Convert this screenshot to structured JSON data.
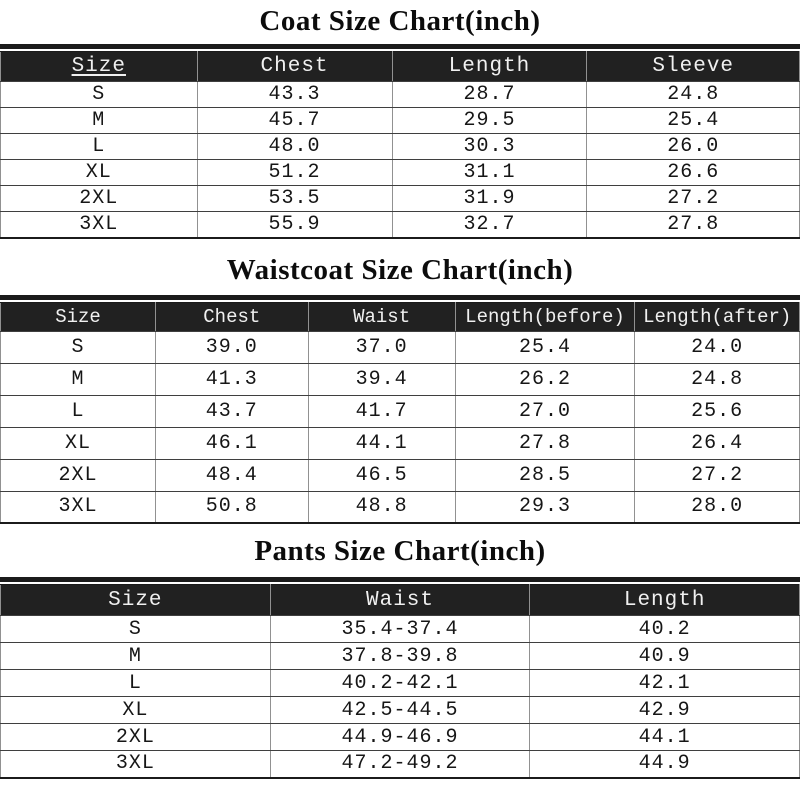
{
  "colors": {
    "header_bg": "#212121",
    "header_text": "#f0f0f0",
    "body_text": "#161616",
    "page_bg": "#ffffff"
  },
  "chart_data": [
    {
      "type": "table",
      "id": "coat",
      "title": "Coat Size Chart(inch)",
      "unit": "inch",
      "columns": [
        "Size",
        "Chest",
        "Length",
        "Sleeve"
      ],
      "col_widths": [
        "24.6%",
        "24.4%",
        "24.4%",
        "26.6%"
      ],
      "rows": [
        [
          "S",
          "43.3",
          "28.7",
          "24.8"
        ],
        [
          "M",
          "45.7",
          "29.5",
          "25.4"
        ],
        [
          "L",
          "48.0",
          "30.3",
          "26.0"
        ],
        [
          "XL",
          "51.2",
          "31.1",
          "26.6"
        ],
        [
          "2XL",
          "53.5",
          "31.9",
          "27.2"
        ],
        [
          "3XL",
          "55.9",
          "32.7",
          "27.8"
        ]
      ]
    },
    {
      "type": "table",
      "id": "waistcoat",
      "title": "Waistcoat Size Chart(inch)",
      "unit": "inch",
      "columns": [
        "Size",
        "Chest",
        "Waist",
        "Length(before)",
        "Length(after)"
      ],
      "col_widths": [
        "19.4%",
        "19.1%",
        "18.4%",
        "22.5%",
        "20.6%"
      ],
      "rows": [
        [
          "S",
          "39.0",
          "37.0",
          "25.4",
          "24.0"
        ],
        [
          "M",
          "41.3",
          "39.4",
          "26.2",
          "24.8"
        ],
        [
          "L",
          "43.7",
          "41.7",
          "27.0",
          "25.6"
        ],
        [
          "XL",
          "46.1",
          "44.1",
          "27.8",
          "26.4"
        ],
        [
          "2XL",
          "48.4",
          "46.5",
          "28.5",
          "27.2"
        ],
        [
          "3XL",
          "50.8",
          "48.8",
          "29.3",
          "28.0"
        ]
      ]
    },
    {
      "type": "table",
      "id": "pants",
      "title": "Pants Size Chart(inch)",
      "unit": "inch",
      "columns": [
        "Size",
        "Waist",
        "Length"
      ],
      "col_widths": [
        "33.75%",
        "32.5%",
        "33.75%"
      ],
      "rows": [
        [
          "S",
          "35.4-37.4",
          "40.2"
        ],
        [
          "M",
          "37.8-39.8",
          "40.9"
        ],
        [
          "L",
          "40.2-42.1",
          "42.1"
        ],
        [
          "XL",
          "42.5-44.5",
          "42.9"
        ],
        [
          "2XL",
          "44.9-46.9",
          "44.1"
        ],
        [
          "3XL",
          "47.2-49.2",
          "44.9"
        ]
      ]
    }
  ]
}
